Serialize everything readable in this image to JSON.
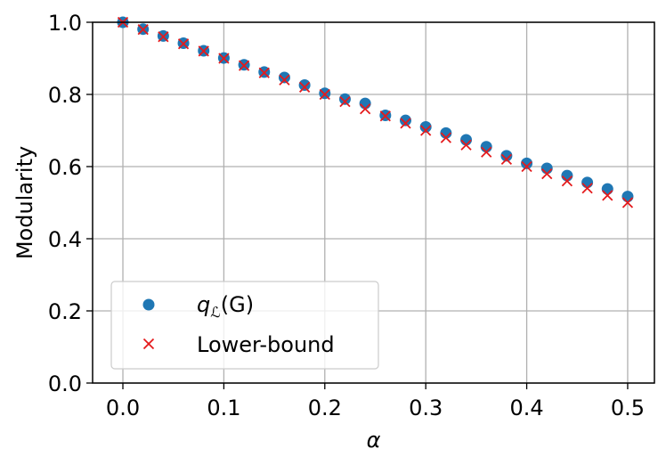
{
  "chart_data": {
    "type": "scatter",
    "xlabel": "α",
    "ylabel": "Modularity",
    "xlim": [
      -0.03,
      0.5265
    ],
    "ylim": [
      0.0,
      1.0
    ],
    "xticks": [
      "0.0",
      "0.1",
      "0.2",
      "0.3",
      "0.4",
      "0.5"
    ],
    "yticks": [
      "0.0",
      "0.2",
      "0.4",
      "0.6",
      "0.8",
      "1.0"
    ],
    "grid": true,
    "legend_position": "lower-left",
    "x": [
      0.0,
      0.02,
      0.04,
      0.06,
      0.08,
      0.1,
      0.12,
      0.14,
      0.16,
      0.18,
      0.2,
      0.22,
      0.24,
      0.26,
      0.28,
      0.3,
      0.32,
      0.34,
      0.36,
      0.38,
      0.4,
      0.42,
      0.44,
      0.46,
      0.48,
      0.5
    ],
    "series": [
      {
        "name_prefix": "q",
        "name_subscript": "ℒ",
        "name_suffix": "(G)",
        "marker": "circle",
        "color": "#1f77b4",
        "values": [
          1.0,
          0.981,
          0.962,
          0.942,
          0.921,
          0.901,
          0.882,
          0.862,
          0.847,
          0.826,
          0.803,
          0.787,
          0.775,
          0.742,
          0.728,
          0.71,
          0.693,
          0.674,
          0.655,
          0.63,
          0.609,
          0.595,
          0.575,
          0.556,
          0.538,
          0.517
        ]
      },
      {
        "name": "Lower-bound",
        "marker": "x",
        "color": "#e41a1c",
        "values": [
          1.0,
          0.98,
          0.96,
          0.94,
          0.92,
          0.9,
          0.88,
          0.86,
          0.84,
          0.82,
          0.8,
          0.78,
          0.76,
          0.74,
          0.72,
          0.7,
          0.68,
          0.66,
          0.64,
          0.62,
          0.6,
          0.58,
          0.56,
          0.54,
          0.52,
          0.5
        ]
      }
    ]
  }
}
